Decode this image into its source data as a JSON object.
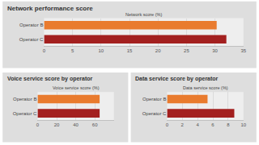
{
  "chart_data": [
    {
      "type": "bar",
      "orientation": "horizontal",
      "title": "Network performance score",
      "xlabel": "Network score (%)",
      "categories": [
        "Operator B",
        "Operator C"
      ],
      "values": [
        30.3,
        32
      ],
      "colors": [
        "#e97b2e",
        "#a3201f"
      ],
      "xlim": [
        0,
        35
      ],
      "xticks": [
        0,
        5,
        10,
        15,
        20,
        25,
        30,
        35
      ],
      "grid": true
    },
    {
      "type": "bar",
      "orientation": "horizontal",
      "title": "Voice service score by operator",
      "xlabel": "Voice service score (%)",
      "categories": [
        "Operator B",
        "Operator C"
      ],
      "values": [
        65,
        65
      ],
      "colors": [
        "#e97b2e",
        "#a3201f"
      ],
      "xlim": [
        0,
        80
      ],
      "xticks": [
        0,
        20,
        40,
        60
      ],
      "grid": true
    },
    {
      "type": "bar",
      "orientation": "horizontal",
      "title": "Data service score by operator",
      "xlabel": "Data service score (%)",
      "categories": [
        "Operator B",
        "Operator C"
      ],
      "values": [
        5.3,
        8.8
      ],
      "colors": [
        "#e97b2e",
        "#a3201f"
      ],
      "xlim": [
        0,
        10
      ],
      "xticks": [
        0,
        2,
        4,
        6,
        8,
        10
      ],
      "grid": true
    }
  ]
}
